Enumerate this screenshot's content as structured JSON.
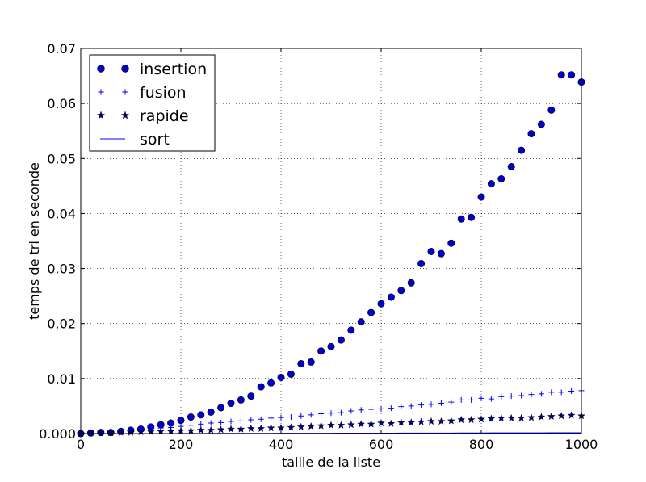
{
  "chart_data": {
    "type": "scatter",
    "title": "",
    "xlabel": "taille de la liste",
    "ylabel": "temps de tri en seconde",
    "xlim": [
      0,
      1000
    ],
    "ylim": [
      0,
      0.07
    ],
    "xticks": [
      0,
      200,
      400,
      600,
      800,
      1000
    ],
    "xtick_labels": [
      "0",
      "200",
      "400",
      "600",
      "800",
      "1000"
    ],
    "yticks": [
      0,
      0.01,
      0.02,
      0.03,
      0.04,
      0.05,
      0.06,
      0.07
    ],
    "ytick_labels": [
      "0.000",
      "0.01",
      "0.02",
      "0.03",
      "0.04",
      "0.05",
      "0.06",
      "0.07"
    ],
    "grid": true,
    "legend_position": "top-left",
    "x": [
      0,
      20,
      40,
      60,
      80,
      100,
      120,
      140,
      160,
      180,
      200,
      220,
      240,
      260,
      280,
      300,
      320,
      340,
      360,
      380,
      400,
      420,
      440,
      460,
      480,
      500,
      520,
      540,
      560,
      580,
      600,
      620,
      640,
      660,
      680,
      700,
      720,
      740,
      760,
      780,
      800,
      820,
      840,
      860,
      880,
      900,
      920,
      940,
      960,
      980,
      1000
    ],
    "series": [
      {
        "name": "insertion",
        "marker": "circle",
        "color": "#0000cc",
        "values": [
          0.0,
          0.0001,
          0.0002,
          0.0002,
          0.0004,
          0.0006,
          0.0008,
          0.0012,
          0.0016,
          0.0019,
          0.0024,
          0.003,
          0.0034,
          0.0039,
          0.0047,
          0.0055,
          0.0061,
          0.0068,
          0.0085,
          0.0092,
          0.0102,
          0.0108,
          0.0127,
          0.013,
          0.015,
          0.0158,
          0.017,
          0.0188,
          0.0203,
          0.022,
          0.0236,
          0.0248,
          0.026,
          0.0274,
          0.0309,
          0.0331,
          0.0327,
          0.0346,
          0.039,
          0.0393,
          0.043,
          0.0454,
          0.0463,
          0.0485,
          0.0515,
          0.0545,
          0.0562,
          0.0588,
          0.0652,
          0.0652,
          0.0639
        ]
      },
      {
        "name": "fusion",
        "marker": "plus",
        "color": "#0000ff",
        "values": [
          0.0,
          0.0001,
          0.0002,
          0.0003,
          0.0004,
          0.0005,
          0.0006,
          0.0008,
          0.001,
          0.0011,
          0.0013,
          0.0015,
          0.0017,
          0.0019,
          0.002,
          0.0022,
          0.0023,
          0.0025,
          0.0026,
          0.0028,
          0.0029,
          0.003,
          0.0032,
          0.0034,
          0.0036,
          0.0037,
          0.0038,
          0.0041,
          0.0043,
          0.0044,
          0.0045,
          0.0046,
          0.0049,
          0.005,
          0.0052,
          0.0053,
          0.0055,
          0.0057,
          0.0061,
          0.0061,
          0.0064,
          0.0063,
          0.0067,
          0.0068,
          0.0069,
          0.0071,
          0.0072,
          0.0075,
          0.0075,
          0.0077,
          0.0078
        ]
      },
      {
        "name": "rapide",
        "marker": "star",
        "color": "#000080",
        "values": [
          0.0,
          0.0001,
          0.0001,
          0.0001,
          0.0002,
          0.0002,
          0.0003,
          0.0003,
          0.0004,
          0.0004,
          0.0005,
          0.0005,
          0.0006,
          0.0006,
          0.0007,
          0.0008,
          0.0008,
          0.0009,
          0.0009,
          0.001,
          0.001,
          0.0011,
          0.0012,
          0.0013,
          0.0014,
          0.0015,
          0.0015,
          0.0016,
          0.0017,
          0.0017,
          0.0019,
          0.0018,
          0.002,
          0.002,
          0.0021,
          0.0022,
          0.0022,
          0.0023,
          0.0025,
          0.0025,
          0.0026,
          0.0027,
          0.0028,
          0.0028,
          0.0028,
          0.0029,
          0.003,
          0.0031,
          0.0032,
          0.0033,
          0.0032
        ]
      },
      {
        "name": "sort",
        "marker": "line",
        "color": "#0000ff",
        "values": [
          0.0,
          0.0,
          0.0,
          0.0,
          0.0,
          0.0,
          0.0,
          0.0,
          0.0,
          0.0,
          2e-05,
          2e-05,
          2e-05,
          3e-05,
          3e-05,
          3e-05,
          3e-05,
          4e-05,
          4e-05,
          4e-05,
          5e-05,
          5e-05,
          5e-05,
          6e-05,
          6e-05,
          6e-05,
          7e-05,
          7e-05,
          7e-05,
          8e-05,
          8e-05,
          8e-05,
          9e-05,
          9e-05,
          9e-05,
          0.0001,
          0.0001,
          0.0001,
          0.00011,
          0.00011,
          0.00011,
          0.00012,
          0.00012,
          0.00012,
          0.00013,
          0.00013,
          0.00013,
          0.00014,
          0.00014,
          0.00014,
          0.00015
        ]
      }
    ]
  }
}
